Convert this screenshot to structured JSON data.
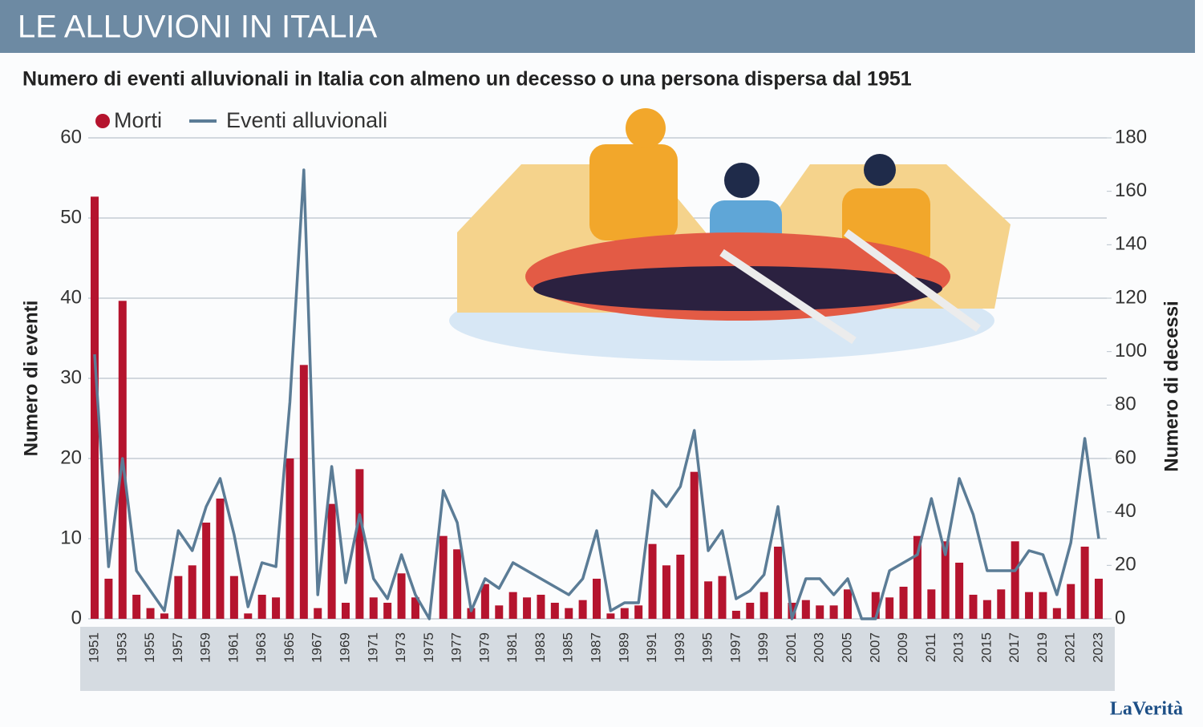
{
  "header": {
    "title": "LE ALLUVIONI IN ITALIA"
  },
  "logo": "LaVerità",
  "chart_data": {
    "type": "bar-line",
    "subtitle": "Numero di eventi alluvionali in Italia con almeno un decesso o una persona dispersa dal 1951",
    "y_label": "Numero di eventi",
    "y2_label": "Numero di decessi",
    "categories": [
      "1951",
      null,
      "1953",
      null,
      "1955",
      null,
      "1957",
      null,
      "1959",
      null,
      "1961",
      null,
      "1963",
      null,
      "1965",
      null,
      "1967",
      null,
      "1969",
      null,
      "1971",
      null,
      "1973",
      null,
      "1975",
      null,
      "1977",
      null,
      "1979",
      null,
      "1981",
      null,
      "1983",
      null,
      "1985",
      null,
      "1987",
      null,
      "1989",
      null,
      "1991",
      null,
      "1993",
      null,
      "1995",
      null,
      "1997",
      null,
      "1999",
      null,
      "2001",
      null,
      "2003",
      null,
      "2005",
      null,
      "2007",
      null,
      "2009",
      null,
      "2011",
      null,
      "2013",
      null,
      "2015",
      null,
      "2017",
      null,
      "2019",
      null,
      "2021",
      null,
      "2023"
    ],
    "series": [
      {
        "name": "Morti",
        "color": "#b5142e",
        "axis": "y2",
        "kind": "bar",
        "values": [
          158,
          15,
          119,
          9,
          4,
          2,
          16,
          20,
          36,
          45,
          16,
          2,
          9,
          8,
          60,
          95,
          4,
          43,
          6,
          56,
          8,
          6,
          17,
          8,
          0,
          31,
          26,
          4,
          13,
          5,
          10,
          8,
          9,
          6,
          4,
          7,
          15,
          2,
          4,
          5,
          28,
          20,
          24,
          55,
          14,
          16,
          3,
          6,
          10,
          27,
          6,
          7,
          5,
          5,
          11,
          0,
          10,
          8,
          12,
          31,
          11,
          29,
          21,
          9,
          7,
          11,
          29,
          10,
          10,
          4,
          13,
          27,
          15
        ]
      },
      {
        "name": "Eventi alluvionali",
        "color": "#5b7c96",
        "kind": "line",
        "values": [
          33,
          6.5,
          20,
          6,
          3.5,
          1,
          11,
          8.5,
          14,
          17.5,
          10.5,
          1.5,
          7,
          6.5,
          27,
          56,
          3,
          19,
          4.5,
          13,
          5,
          2.5,
          8,
          3,
          0,
          16,
          12,
          1,
          5,
          3.8,
          7,
          6,
          5,
          4,
          3,
          5,
          11,
          1,
          2,
          2,
          16,
          14,
          16.5,
          23.5,
          8.5,
          11,
          2.5,
          3.5,
          5.5,
          14,
          0,
          5,
          5,
          3,
          5,
          0,
          0,
          6,
          7,
          8,
          15,
          8,
          17.5,
          13,
          6,
          6,
          6,
          8.5,
          8,
          3,
          9.5,
          22.5,
          10
        ]
      }
    ],
    "ylim": [
      0,
      60
    ],
    "yticks": [
      0,
      10,
      20,
      30,
      40,
      50,
      60
    ],
    "y2lim": [
      0,
      180
    ],
    "y2ticks": [
      0,
      20,
      40,
      60,
      80,
      100,
      120,
      140,
      160,
      180
    ],
    "grid": true
  }
}
